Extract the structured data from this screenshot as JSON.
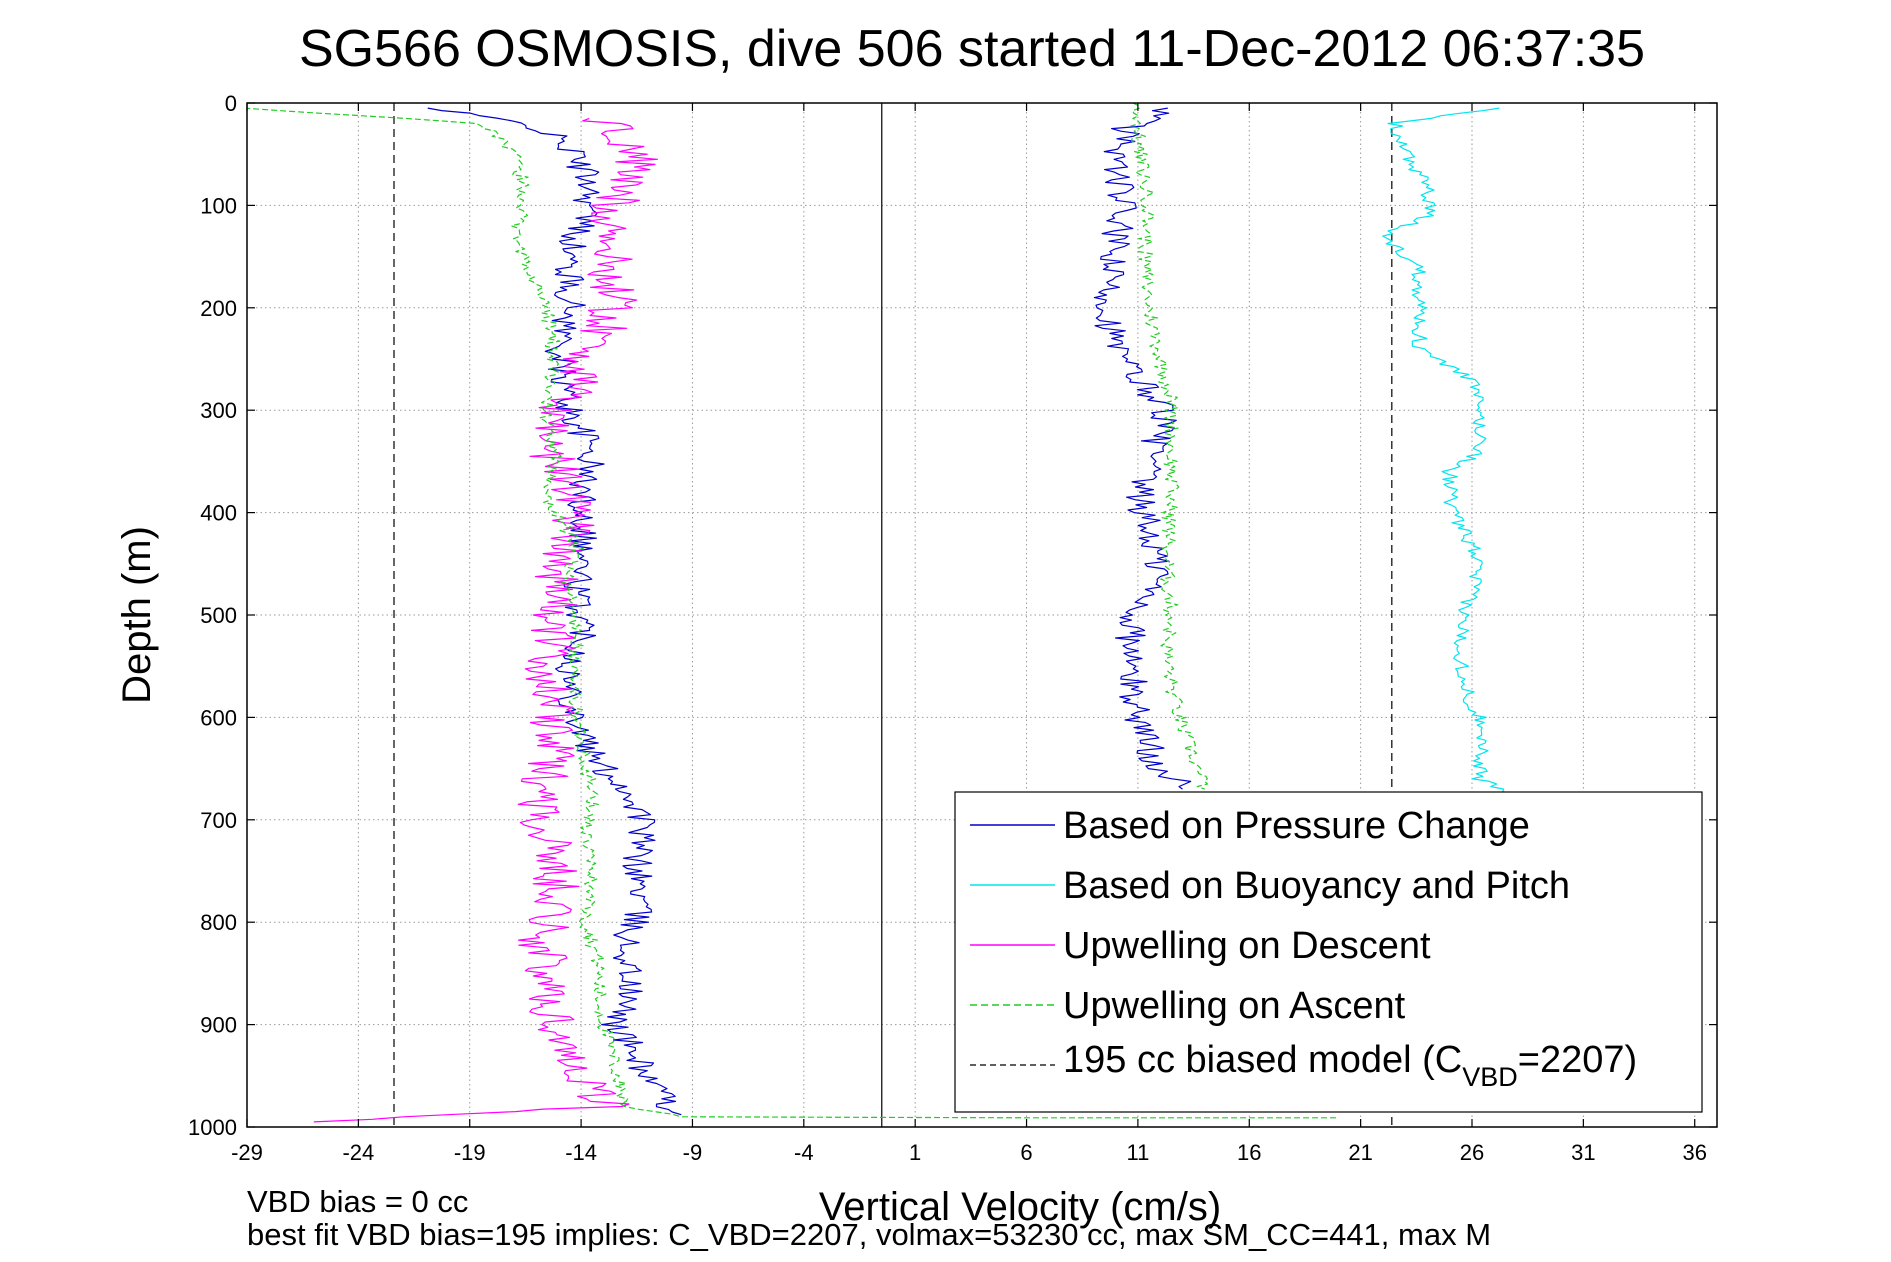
{
  "chart_data": {
    "type": "line",
    "title": "SG566 OSMOSIS, dive 506 started 11-Dec-2012 06:37:35",
    "xlabel": "Vertical Velocity (cm/s)",
    "ylabel": "Depth (m)",
    "xlim": [
      -29,
      37
    ],
    "ylim": [
      1000,
      0
    ],
    "x_ticks": [
      "-29",
      "-24",
      "-19",
      "-14",
      "-9",
      "-4",
      "1",
      "6",
      "11",
      "16",
      "21",
      "26",
      "31",
      "36"
    ],
    "y_ticks": [
      "0",
      "100",
      "200",
      "300",
      "400",
      "500",
      "600",
      "700",
      "800",
      "900",
      "1000"
    ],
    "grid": true,
    "legend_position": "bottom-right",
    "legend": {
      "pressure": "Based on Pressure Change",
      "buoyancy": "Based on Buoyancy and Pitch",
      "descent": "Upwelling on Descent",
      "ascent": "Upwelling on Ascent",
      "model_prefix": "195 cc biased model (C",
      "model_sub": "VBD",
      "model_suffix": "=2207)"
    },
    "notes": {
      "line1": "VBD bias = 0 cc",
      "line2": "best fit VBD bias=195 implies: C_VBD=2207, volmax=53230 cc, max SM_CC=441, max M"
    },
    "reference_lines": [
      {
        "x": -22.4,
        "style": "dashed",
        "color": "#000000"
      },
      {
        "x": -0.5,
        "style": "solid",
        "color": "#000000"
      },
      {
        "x": 22.4,
        "style": "dashed",
        "color": "#000000"
      }
    ],
    "series": [
      {
        "name": "Based on Pressure Change",
        "color": "#0000cc",
        "style": "solid",
        "segments": [
          [
            [
              -21,
              5
            ],
            [
              -16,
              22
            ],
            [
              -14.5,
              45
            ],
            [
              -13.5,
              80
            ],
            [
              -13.8,
              110
            ],
            [
              -14.6,
              150
            ],
            [
              -14.5,
              200
            ],
            [
              -15,
              250
            ],
            [
              -14.5,
              300
            ],
            [
              -13.5,
              340
            ],
            [
              -14,
              380
            ],
            [
              -13.8,
              420
            ],
            [
              -14.2,
              480
            ],
            [
              -13.8,
              520
            ],
            [
              -14.6,
              560
            ],
            [
              -14.2,
              600
            ],
            [
              -13.5,
              640
            ],
            [
              -12,
              670
            ],
            [
              -11.2,
              700
            ],
            [
              -11.5,
              740
            ],
            [
              -11.3,
              780
            ],
            [
              -12,
              820
            ],
            [
              -11.8,
              860
            ],
            [
              -12.4,
              900
            ],
            [
              -11,
              950
            ],
            [
              -10.3,
              975
            ],
            [
              -9.5,
              988
            ]
          ],
          [
            [
              12.5,
              5
            ],
            [
              10.5,
              25
            ],
            [
              10,
              60
            ],
            [
              10.3,
              100
            ],
            [
              9.8,
              150
            ],
            [
              9.6,
              200
            ],
            [
              10,
              240
            ],
            [
              11,
              270
            ],
            [
              12.3,
              300
            ],
            [
              11.7,
              340
            ],
            [
              11,
              380
            ],
            [
              11.5,
              420
            ],
            [
              12,
              460
            ],
            [
              10.8,
              500
            ],
            [
              10.6,
              540
            ],
            [
              10.8,
              580
            ],
            [
              11.2,
              610
            ],
            [
              11.7,
              640
            ],
            [
              13,
              670
            ]
          ]
        ]
      },
      {
        "name": "Based on Buoyancy and Pitch",
        "color": "#00e5ee",
        "style": "solid",
        "segments": [
          [
            [
              27,
              5
            ],
            [
              22.5,
              20
            ],
            [
              23,
              50
            ],
            [
              24,
              80
            ],
            [
              24,
              110
            ],
            [
              22,
              130
            ],
            [
              23.6,
              160
            ],
            [
              23.7,
              200
            ],
            [
              23.6,
              240
            ],
            [
              26,
              270
            ],
            [
              26.3,
              300
            ],
            [
              26.4,
              340
            ],
            [
              25,
              360
            ],
            [
              25.1,
              400
            ],
            [
              26.2,
              440
            ],
            [
              26.1,
              470
            ],
            [
              25.6,
              500
            ],
            [
              25.5,
              540
            ],
            [
              25.8,
              580
            ],
            [
              26.6,
              610
            ],
            [
              26.4,
              640
            ],
            [
              26.3,
              660
            ],
            [
              28.5,
              680
            ]
          ]
        ]
      },
      {
        "name": "Upwelling on Descent",
        "color": "#ff00ff",
        "style": "solid",
        "segments": [
          [
            [
              -13,
              15
            ],
            [
              -11.5,
              50
            ],
            [
              -12.5,
              100
            ],
            [
              -12.8,
              150
            ],
            [
              -12.5,
              200
            ],
            [
              -13.8,
              250
            ],
            [
              -15,
              300
            ],
            [
              -15.5,
              340
            ],
            [
              -14.2,
              380
            ],
            [
              -14.3,
              420
            ],
            [
              -15,
              460
            ],
            [
              -15.2,
              500
            ],
            [
              -15.5,
              560
            ],
            [
              -15.2,
              620
            ],
            [
              -15.6,
              660
            ],
            [
              -15.8,
              700
            ],
            [
              -15.2,
              740
            ],
            [
              -15,
              780
            ],
            [
              -15.8,
              820
            ],
            [
              -15.6,
              860
            ],
            [
              -15.2,
              900
            ],
            [
              -14.2,
              940
            ],
            [
              -12.8,
              980
            ],
            [
              -26,
              995
            ]
          ]
        ]
      },
      {
        "name": "Upwelling on Ascent",
        "color": "#22cc22",
        "style": "dashed",
        "segments": [
          [
            [
              -29,
              5
            ],
            [
              -18.5,
              20
            ],
            [
              -17,
              50
            ],
            [
              -16.5,
              90
            ],
            [
              -16.8,
              120
            ],
            [
              -16.5,
              160
            ],
            [
              -15.5,
              200
            ],
            [
              -15.2,
              250
            ],
            [
              -15.6,
              300
            ],
            [
              -15.2,
              350
            ],
            [
              -15.5,
              390
            ],
            [
              -14.2,
              430
            ],
            [
              -14.6,
              470
            ],
            [
              -14.2,
              520
            ],
            [
              -14.4,
              560
            ],
            [
              -14.2,
              600
            ],
            [
              -13.8,
              640
            ],
            [
              -13.5,
              680
            ],
            [
              -13.8,
              720
            ],
            [
              -13.5,
              760
            ],
            [
              -13.8,
              800
            ],
            [
              -13.2,
              840
            ],
            [
              -13.2,
              880
            ],
            [
              -12.5,
              940
            ],
            [
              -12,
              980
            ],
            [
              -9.5,
              990
            ],
            [
              6,
              991
            ],
            [
              20,
              991
            ]
          ],
          [
            [
              11,
              0
            ],
            [
              11,
              40
            ],
            [
              11.5,
              100
            ],
            [
              11.3,
              150
            ],
            [
              11.5,
              200
            ],
            [
              12,
              250
            ],
            [
              12.5,
              290
            ],
            [
              12.5,
              340
            ],
            [
              12.5,
              380
            ],
            [
              12.4,
              420
            ],
            [
              12.3,
              460
            ],
            [
              12.5,
              500
            ],
            [
              12.3,
              540
            ],
            [
              12.6,
              580
            ],
            [
              13,
              610
            ],
            [
              13.5,
              640
            ],
            [
              14,
              670
            ]
          ]
        ]
      }
    ]
  }
}
